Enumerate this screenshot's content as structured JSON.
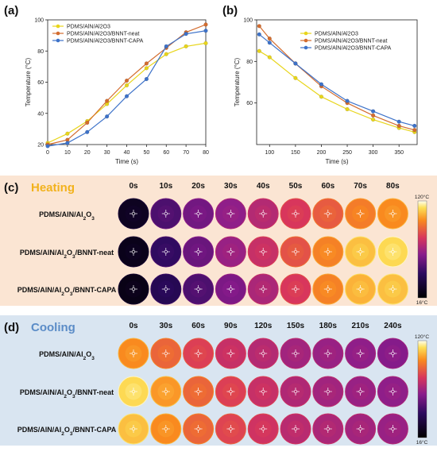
{
  "chart_data": [
    {
      "panel": "(a)",
      "type": "line",
      "xlabel": "Time (s)",
      "ylabel": "Temperature (°C)",
      "xlim": [
        0,
        80
      ],
      "ylim": [
        20,
        100
      ],
      "xticks": [
        "0",
        "10",
        "20",
        "30",
        "40",
        "50",
        "60",
        "70",
        "80"
      ],
      "yticks": [
        "20",
        "40",
        "60",
        "80",
        "100"
      ],
      "legend": "top-left",
      "grid": false,
      "series": [
        {
          "name": "PDMS/AlN/Al2O3",
          "color": "#e8d51a",
          "marker": "circle",
          "points": [
            [
              0,
              21
            ],
            [
              10,
              27
            ],
            [
              20,
              35
            ],
            [
              30,
              46
            ],
            [
              40,
              58
            ],
            [
              50,
              69
            ],
            [
              60,
              78
            ],
            [
              70,
              83
            ],
            [
              80,
              85
            ]
          ]
        },
        {
          "name": "PDMS/AlN/Al2O3/BNNT-neat",
          "color": "#d36c2e",
          "marker": "circle",
          "points": [
            [
              0,
              20
            ],
            [
              10,
              23
            ],
            [
              20,
              34
            ],
            [
              30,
              48
            ],
            [
              40,
              61
            ],
            [
              50,
              72
            ],
            [
              60,
              82
            ],
            [
              70,
              92
            ],
            [
              80,
              97
            ]
          ]
        },
        {
          "name": "PDMS/AlN/Al2O3/BNNT-CAPA",
          "color": "#3d72c9",
          "marker": "circle",
          "points": [
            [
              0,
              19
            ],
            [
              10,
              21
            ],
            [
              20,
              28
            ],
            [
              30,
              38
            ],
            [
              40,
              51
            ],
            [
              50,
              62
            ],
            [
              60,
              83
            ],
            [
              70,
              91
            ],
            [
              80,
              93
            ]
          ]
        }
      ]
    },
    {
      "panel": "(b)",
      "type": "line",
      "xlabel": "Time (s)",
      "ylabel": "Temperature (°C)",
      "xlim": [
        75,
        385
      ],
      "ylim": [
        40,
        100
      ],
      "xticks": [
        "100",
        "150",
        "200",
        "250",
        "300",
        "350"
      ],
      "yticks": [
        "60",
        "80",
        "100"
      ],
      "legend": "top-right",
      "grid": false,
      "series": [
        {
          "name": "PDMS/AlN/Al2O3",
          "color": "#e8d51a",
          "marker": "circle",
          "points": [
            [
              80,
              85
            ],
            [
              100,
              82
            ],
            [
              150,
              72
            ],
            [
              200,
              63
            ],
            [
              250,
              57
            ],
            [
              300,
              52
            ],
            [
              350,
              48
            ],
            [
              380,
              46
            ]
          ]
        },
        {
          "name": "PDMS/AlN/Al2O3/BNNT-neat",
          "color": "#d36c2e",
          "marker": "circle",
          "points": [
            [
              80,
              97
            ],
            [
              100,
              91
            ],
            [
              150,
              79
            ],
            [
              200,
              68
            ],
            [
              250,
              60
            ],
            [
              300,
              54
            ],
            [
              350,
              49
            ],
            [
              380,
              47
            ]
          ]
        },
        {
          "name": "PDMS/AlN/Al2O3/BNNT-CAPA",
          "color": "#3d72c9",
          "marker": "circle",
          "points": [
            [
              80,
              93
            ],
            [
              100,
              89
            ],
            [
              150,
              79
            ],
            [
              200,
              69
            ],
            [
              250,
              61
            ],
            [
              300,
              56
            ],
            [
              350,
              51
            ],
            [
              380,
              49
            ]
          ]
        }
      ]
    },
    {
      "panel": "(c)",
      "type": "heatmap",
      "title": "Heating",
      "columns": [
        "0s",
        "10s",
        "20s",
        "30s",
        "40s",
        "50s",
        "60s",
        "70s",
        "80s"
      ],
      "rows": [
        {
          "html": "PDMS/AlN/Al<sub>2</sub>O<sub>3</sub>",
          "levels": [
            0.08,
            0.32,
            0.4,
            0.46,
            0.54,
            0.62,
            0.7,
            0.77,
            0.8
          ]
        },
        {
          "html": "PDMS/AlN/Al<sub>2</sub>O<sub>3</sub>/BNNT-neat",
          "levels": [
            0.06,
            0.26,
            0.38,
            0.48,
            0.58,
            0.68,
            0.78,
            0.88,
            0.92
          ]
        },
        {
          "html": "PDMS/AlN/Al<sub>2</sub>O<sub>3</sub>/BNNT-CAPA",
          "levels": [
            0.05,
            0.22,
            0.32,
            0.42,
            0.52,
            0.62,
            0.78,
            0.86,
            0.88
          ]
        }
      ],
      "colorbar": {
        "max": "120°C",
        "min": "16°C"
      }
    },
    {
      "panel": "(d)",
      "type": "heatmap",
      "title": "Cooling",
      "columns": [
        "0s",
        "30s",
        "60s",
        "90s",
        "120s",
        "150s",
        "180s",
        "210s",
        "240s"
      ],
      "rows": [
        {
          "html": "PDMS/AlN/Al<sub>2</sub>O<sub>3</sub>",
          "levels": [
            0.8,
            0.72,
            0.64,
            0.58,
            0.54,
            0.5,
            0.48,
            0.46,
            0.44
          ]
        },
        {
          "html": "PDMS/AlN/Al<sub>2</sub>O<sub>3</sub>/BNNT-neat",
          "levels": [
            0.92,
            0.82,
            0.72,
            0.64,
            0.58,
            0.53,
            0.5,
            0.48,
            0.46
          ]
        },
        {
          "html": "PDMS/AlN/Al<sub>2</sub>O<sub>3</sub>/BNNT-CAPA",
          "levels": [
            0.88,
            0.8,
            0.72,
            0.65,
            0.6,
            0.55,
            0.52,
            0.5,
            0.48
          ]
        }
      ],
      "colorbar": {
        "max": "120°C",
        "min": "16°C"
      }
    }
  ],
  "colors": {
    "heating_bg": "#fbe5d3",
    "cooling_bg": "#d9e5f1",
    "heating_title": "#f2b21c",
    "cooling_title": "#5b8cc7"
  }
}
